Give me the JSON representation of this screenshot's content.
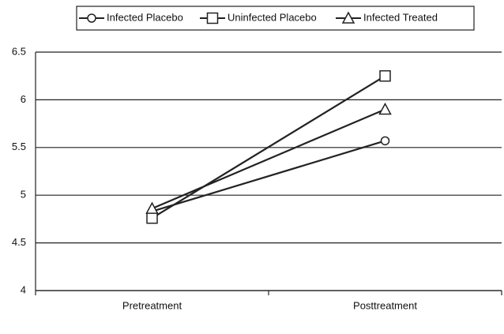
{
  "chart_data": {
    "type": "line",
    "categories": [
      "Pretreatment",
      "Posttreatment"
    ],
    "series": [
      {
        "name": "Infected Placebo",
        "color": "#222222",
        "marker": "circle",
        "values": [
          4.83,
          5.57
        ]
      },
      {
        "name": "Uninfected Placebo",
        "color": "#222222",
        "marker": "square",
        "values": [
          4.76,
          6.25
        ]
      },
      {
        "name": "Infected Treated",
        "color": "#222222",
        "marker": "triangle",
        "values": [
          4.86,
          5.9
        ]
      }
    ],
    "ylim": [
      4,
      6.5
    ],
    "yticks": [
      4,
      4.5,
      5,
      5.5,
      6,
      6.5
    ],
    "grid": true
  }
}
